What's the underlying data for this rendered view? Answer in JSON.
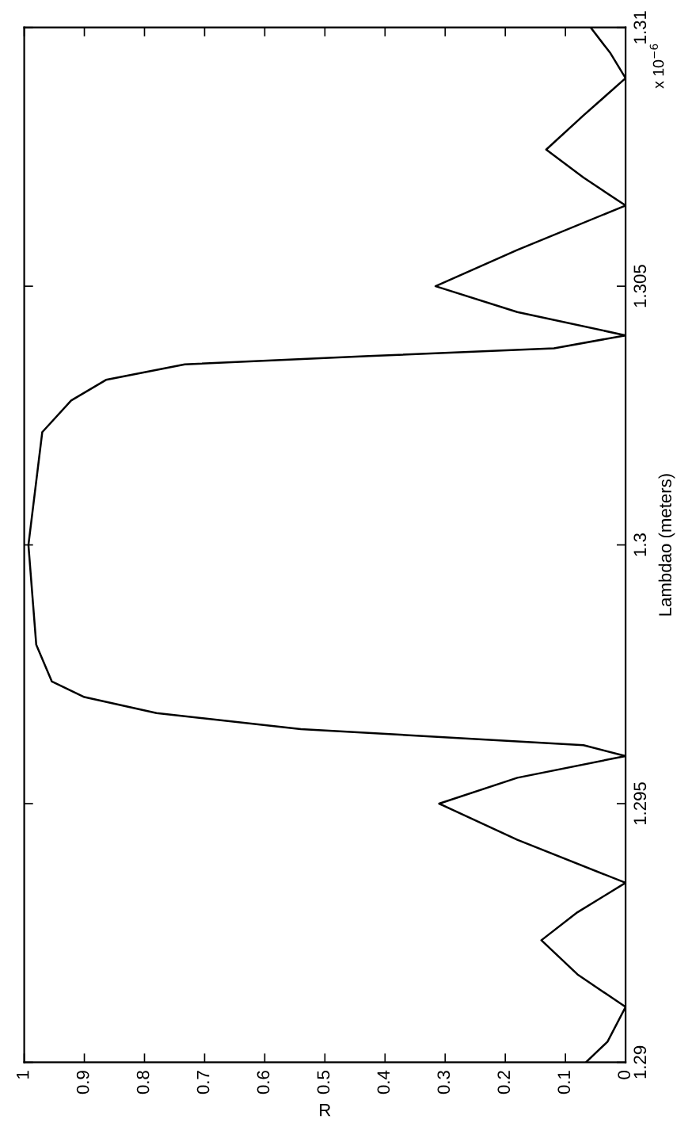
{
  "chart_data": {
    "type": "line",
    "xlabel": "R",
    "ylabel": "Lambdao (meters)",
    "annotations": [
      "x 10$^{−6}$"
    ],
    "x": [
      0.066,
      0.03,
      0.0,
      0.08,
      0.14,
      0.08,
      0.0,
      0.18,
      0.31,
      0.18,
      0.0,
      0.07,
      0.54,
      0.78,
      0.9,
      0.954,
      0.98,
      0.993,
      0.97,
      0.922,
      0.864,
      0.733,
      0.427,
      0.119,
      0.0,
      0.18,
      0.316,
      0.18,
      0.0,
      0.07,
      0.132,
      0.07,
      0.0,
      0.025,
      0.058
    ],
    "series": [
      {
        "color": "#000000",
        "values": [
          1.29,
          1.2904,
          1.29107,
          1.2917,
          1.29236,
          1.2929,
          1.29347,
          1.2943,
          1.295,
          1.2955,
          1.29592,
          1.29613,
          1.29644,
          1.29675,
          1.29706,
          1.29736,
          1.29807,
          1.3,
          1.30218,
          1.30279,
          1.30319,
          1.30349,
          1.30365,
          1.3038,
          1.30405,
          1.3045,
          1.305,
          1.3057,
          1.30656,
          1.3071,
          1.30764,
          1.3083,
          1.30902,
          1.3095,
          1.31
        ]
      }
    ],
    "xlim": [
      1,
      0
    ],
    "xticks": [
      0,
      0.1,
      0.2,
      0.3,
      0.4,
      0.5,
      0.6,
      0.7,
      0.8,
      0.9,
      1
    ],
    "ylim": [
      1.29,
      1.31
    ],
    "yticks": [
      1.29,
      1.295,
      1.3,
      1.305,
      1.31
    ]
  }
}
